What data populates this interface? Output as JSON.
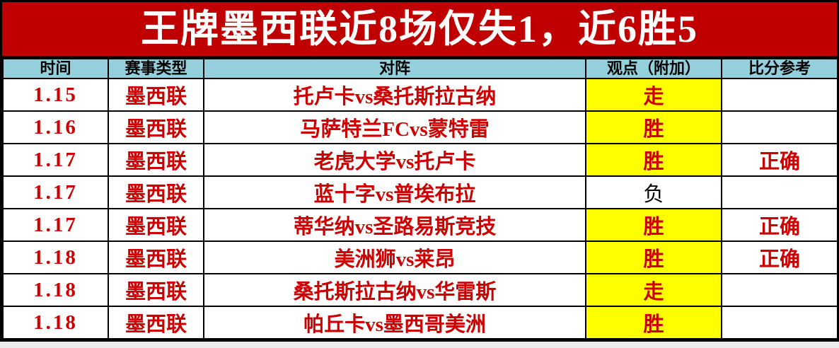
{
  "title": "王牌墨西联近8场仅失1，近6胜5",
  "colors": {
    "banner_bg": "#C00000",
    "banner_text": "#FFFFFF",
    "header_bg": "#95CFDB",
    "highlight_bg": "#FFFF00",
    "accent_text": "#CC0000",
    "plain_text": "#000000"
  },
  "table": {
    "headers": [
      "时间",
      "赛事类型",
      "对阵",
      "观点（附加）",
      "比分参考"
    ],
    "rows": [
      {
        "date": "1.15",
        "league": "墨西联",
        "matchup": "托卢卡vs桑托斯拉古纳",
        "view": "走",
        "view_bg": "#FFFF00",
        "view_color": "#CC0000",
        "view_weight": "bold",
        "result": ""
      },
      {
        "date": "1.16",
        "league": "墨西联",
        "matchup": "马萨特兰FCvs蒙特雷",
        "view": "胜",
        "view_bg": "#FFFF00",
        "view_color": "#CC0000",
        "view_weight": "bold",
        "result": ""
      },
      {
        "date": "1.17",
        "league": "墨西联",
        "matchup": "老虎大学vs托卢卡",
        "view": "胜",
        "view_bg": "#FFFF00",
        "view_color": "#CC0000",
        "view_weight": "bold",
        "result": "正确"
      },
      {
        "date": "1.17",
        "league": "墨西联",
        "matchup": "蓝十字vs普埃布拉",
        "view": "负",
        "view_bg": "#FFFFFF",
        "view_color": "#000000",
        "view_weight": "normal",
        "result": ""
      },
      {
        "date": "1.17",
        "league": "墨西联",
        "matchup": "蒂华纳vs圣路易斯竞技",
        "view": "胜",
        "view_bg": "#FFFF00",
        "view_color": "#CC0000",
        "view_weight": "bold",
        "result": "正确"
      },
      {
        "date": "1.18",
        "league": "墨西联",
        "matchup": "美洲狮vs莱昂",
        "view": "胜",
        "view_bg": "#FFFF00",
        "view_color": "#CC0000",
        "view_weight": "bold",
        "result": "正确"
      },
      {
        "date": "1.18",
        "league": "墨西联",
        "matchup": "桑托斯拉古纳vs华雷斯",
        "view": "走",
        "view_bg": "#FFFF00",
        "view_color": "#CC0000",
        "view_weight": "bold",
        "result": ""
      },
      {
        "date": "1.18",
        "league": "墨西联",
        "matchup": "帕丘卡vs墨西哥美洲",
        "view": "胜",
        "view_bg": "#FFFF00",
        "view_color": "#CC0000",
        "view_weight": "bold",
        "result": ""
      }
    ]
  }
}
